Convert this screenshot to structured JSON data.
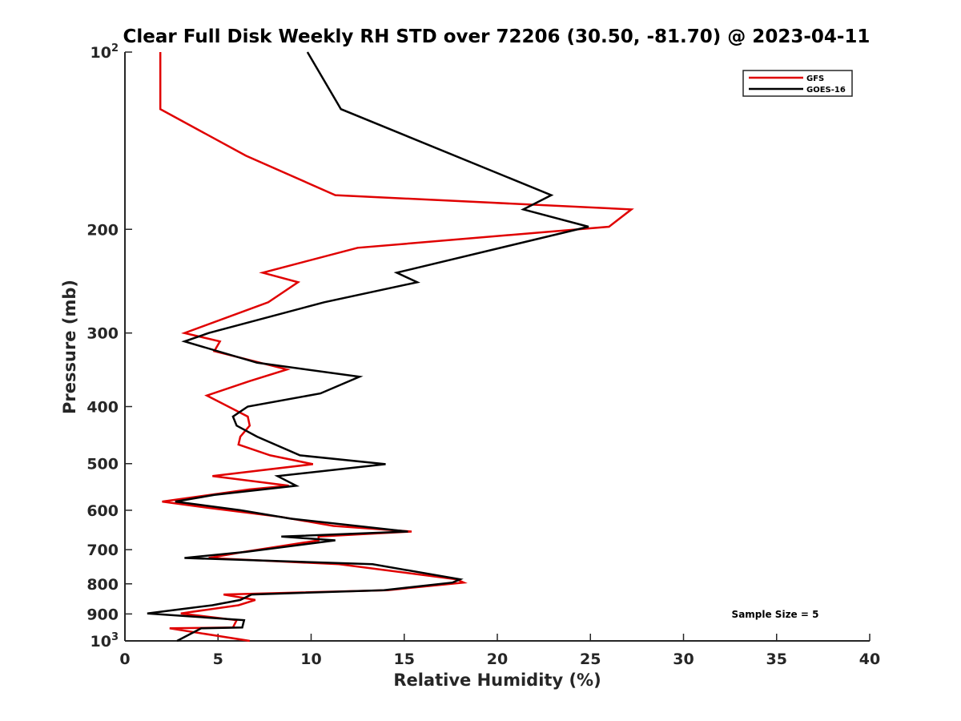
{
  "chart_data": {
    "type": "line",
    "title": "Clear Full Disk Weekly RH STD over 72206 (30.50, -81.70) @ 2023-04-11",
    "xlabel": "Relative Humidity (%)",
    "ylabel": "Pressure (mb)",
    "xlim": [
      0,
      40
    ],
    "ylim": [
      100,
      1000
    ],
    "y_scale": "log",
    "y_reversed": true,
    "grid": false,
    "legend_position": "top-right",
    "x_ticks": [
      0,
      5,
      10,
      15,
      20,
      25,
      30,
      35,
      40
    ],
    "y_ticks": [
      {
        "value": 100,
        "base": "10",
        "exp": "2",
        "label": ""
      },
      {
        "value": 200,
        "label": "200"
      },
      {
        "value": 300,
        "label": "300"
      },
      {
        "value": 400,
        "label": "400"
      },
      {
        "value": 500,
        "label": "500"
      },
      {
        "value": 600,
        "label": "600"
      },
      {
        "value": 700,
        "label": "700"
      },
      {
        "value": 800,
        "label": "800"
      },
      {
        "value": 900,
        "label": "900"
      },
      {
        "value": 1000,
        "base": "10",
        "exp": "3",
        "label": ""
      }
    ],
    "annotation": "Sample Size = 5",
    "series": [
      {
        "name": "GFS",
        "color": "#e00000",
        "points": [
          [
            1.9,
            100
          ],
          [
            1.9,
            125
          ],
          [
            6.5,
            150
          ],
          [
            11.3,
            175
          ],
          [
            27.2,
            185
          ],
          [
            26,
            198
          ],
          [
            12.5,
            215
          ],
          [
            7.4,
            237
          ],
          [
            9.3,
            246
          ],
          [
            7.7,
            266
          ],
          [
            3.2,
            300
          ],
          [
            5.1,
            310
          ],
          [
            4.8,
            322
          ],
          [
            8.7,
            346
          ],
          [
            6.7,
            362
          ],
          [
            4.4,
            383
          ],
          [
            6.6,
            416
          ],
          [
            6.7,
            431
          ],
          [
            6.2,
            450
          ],
          [
            6.1,
            464
          ],
          [
            7.8,
            484
          ],
          [
            10.1,
            501
          ],
          [
            4.7,
            525
          ],
          [
            8.8,
            545
          ],
          [
            6.7,
            553
          ],
          [
            2,
            580
          ],
          [
            4.6,
            595
          ],
          [
            8.4,
            616
          ],
          [
            11.2,
            638
          ],
          [
            15.4,
            652
          ],
          [
            10.4,
            665
          ],
          [
            10.4,
            675
          ],
          [
            6.4,
            706
          ],
          [
            4.5,
            723
          ],
          [
            11.5,
            741
          ],
          [
            17.8,
            786
          ],
          [
            18.2,
            796
          ],
          [
            14.1,
            820
          ],
          [
            5.3,
            834
          ],
          [
            7,
            852
          ],
          [
            6.1,
            870
          ],
          [
            3,
            898
          ],
          [
            6,
            922
          ],
          [
            5.8,
            949
          ],
          [
            2.4,
            952
          ],
          [
            6.7,
            1000
          ]
        ]
      },
      {
        "name": "GOES-16",
        "color": "#000000",
        "points": [
          [
            9.8,
            100
          ],
          [
            11.6,
            125
          ],
          [
            22.9,
            175
          ],
          [
            21.4,
            185
          ],
          [
            24.9,
            198
          ],
          [
            14.6,
            237
          ],
          [
            15.7,
            246
          ],
          [
            10.7,
            266
          ],
          [
            4.5,
            300
          ],
          [
            3.2,
            310
          ],
          [
            7.1,
            337
          ],
          [
            12.6,
            356
          ],
          [
            10.5,
            380
          ],
          [
            6.6,
            400
          ],
          [
            5.8,
            416
          ],
          [
            6,
            431
          ],
          [
            7.1,
            450
          ],
          [
            9.4,
            484
          ],
          [
            14,
            501
          ],
          [
            8.2,
            525
          ],
          [
            9.2,
            545
          ],
          [
            4.8,
            565
          ],
          [
            2.7,
            580
          ],
          [
            6.2,
            600
          ],
          [
            8.9,
            620
          ],
          [
            15.2,
            652
          ],
          [
            8.4,
            665
          ],
          [
            11.3,
            675
          ],
          [
            6.5,
            706
          ],
          [
            3.2,
            723
          ],
          [
            13.3,
            741
          ],
          [
            18,
            786
          ],
          [
            17.6,
            796
          ],
          [
            13.9,
            820
          ],
          [
            6.8,
            834
          ],
          [
            6.2,
            852
          ],
          [
            4.7,
            870
          ],
          [
            1.2,
            898
          ],
          [
            6.4,
            922
          ],
          [
            6.3,
            949
          ],
          [
            4.1,
            952
          ],
          [
            2.8,
            1000
          ]
        ]
      }
    ]
  }
}
